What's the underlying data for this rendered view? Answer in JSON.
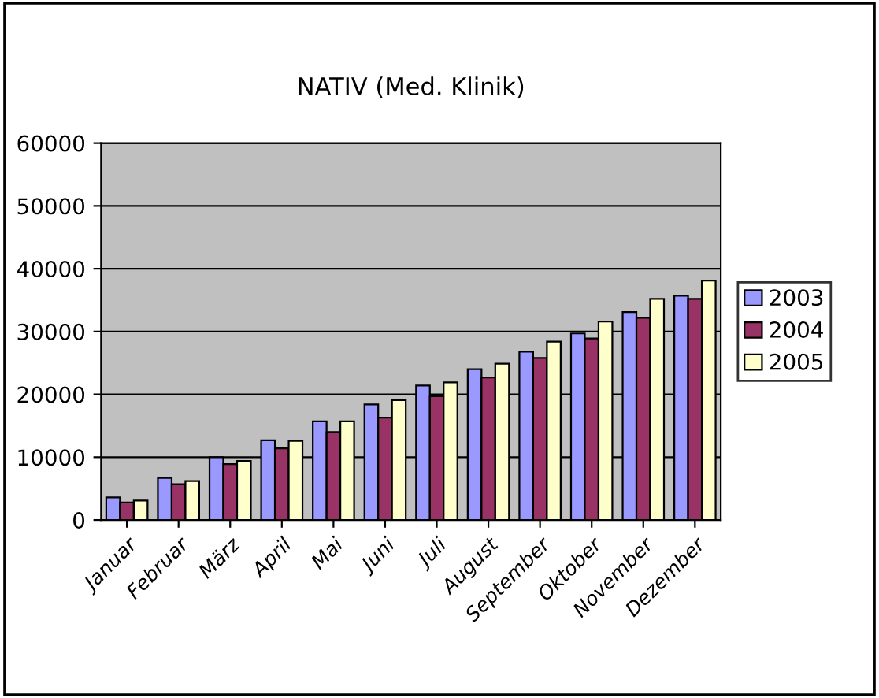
{
  "chart_data": {
    "type": "bar",
    "title": "NATIV (Med. Klinik)",
    "categories": [
      "Januar",
      "Februar",
      "März",
      "April",
      "Mai",
      "Juni",
      "Juli",
      "August",
      "September",
      "Oktober",
      "November",
      "Dezember"
    ],
    "series": [
      {
        "name": "2003",
        "color": "#9999ff",
        "values": [
          3600,
          6700,
          10000,
          12700,
          15700,
          18400,
          21400,
          24000,
          26800,
          29700,
          33100,
          35700
        ]
      },
      {
        "name": "2004",
        "color": "#993366",
        "values": [
          2800,
          5700,
          8900,
          11400,
          14000,
          16300,
          19700,
          22700,
          25800,
          28900,
          32200,
          35200
        ]
      },
      {
        "name": "2005",
        "color": "#ffffcc",
        "values": [
          3100,
          6200,
          9400,
          12600,
          15700,
          19100,
          21900,
          24900,
          28400,
          31600,
          35200,
          38100
        ]
      }
    ],
    "ylim": [
      0,
      60000
    ],
    "yticks": [
      0,
      10000,
      20000,
      30000,
      40000,
      50000,
      60000
    ],
    "grid": "y",
    "legend": "right"
  }
}
